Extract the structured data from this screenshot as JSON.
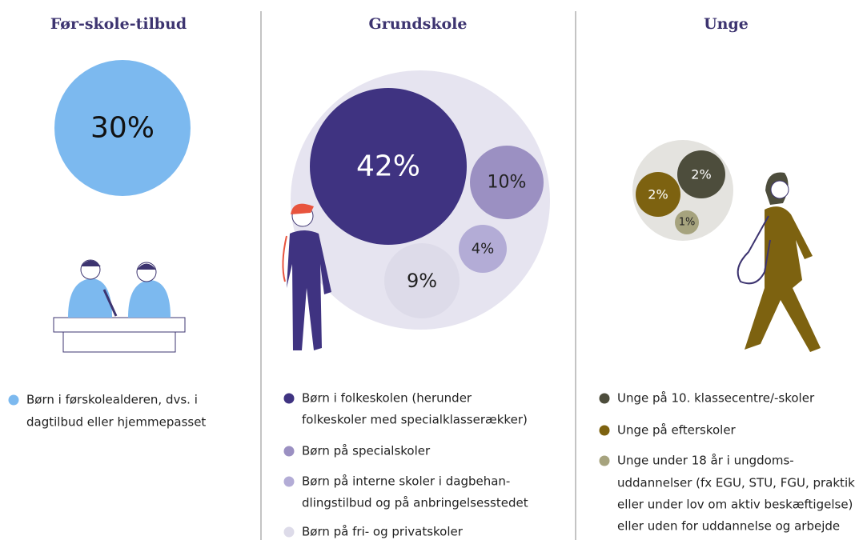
{
  "panels": [
    {
      "title": "Før-skole-tilbud",
      "bubbles": [
        {
          "value": 30,
          "label": "30%",
          "color": "#7cb9ef"
        }
      ],
      "legend": [
        {
          "color": "#7cb9ef",
          "lines": [
            "Børn i førskolealderen, dvs. i",
            "dagtilbud eller hjemmepasset"
          ]
        }
      ]
    },
    {
      "title": "Grundskole",
      "bubbles": [
        {
          "value": 42,
          "label": "42%",
          "color": "#3f3381"
        },
        {
          "value": 10,
          "label": "10%",
          "color": "#9b90c2"
        },
        {
          "value": 4,
          "label": "4%",
          "color": "#b3acd6"
        },
        {
          "value": 9,
          "label": "9%",
          "color": "#dddbe9"
        }
      ],
      "legend": [
        {
          "color": "#3f3381",
          "lines": [
            "Børn i folkeskolen (herunder",
            "folkeskoler med specialklasserækker)"
          ]
        },
        {
          "color": "#9b90c2",
          "lines": [
            "Børn på specialskoler"
          ]
        },
        {
          "color": "#b3acd6",
          "lines": [
            "Børn på interne skoler i dagbehan-",
            "dlingstilbud og på anbringelsesstedet"
          ]
        },
        {
          "color": "#dddbe9",
          "lines": [
            "Børn på fri- og privatskoler"
          ]
        }
      ]
    },
    {
      "title": "Unge",
      "bubbles": [
        {
          "value": 2,
          "label": "2%",
          "color": "#4d4d3c"
        },
        {
          "value": 2,
          "label": "2%",
          "color": "#7d6210"
        },
        {
          "value": 1,
          "label": "1%",
          "color": "#a6a37e"
        }
      ],
      "legend": [
        {
          "color": "#4d4d3c",
          "lines": [
            "Unge på 10. klassecentre/-skoler"
          ]
        },
        {
          "color": "#7d6210",
          "lines": [
            "Unge på efterskoler"
          ]
        },
        {
          "color": "#a6a37e",
          "lines": [
            "Unge under 18 år i ungdoms-",
            "uddannelser (fx EGU, STU, FGU, praktik",
            "eller under lov om aktiv beskæftigelse)",
            "eller uden for uddannelse og arbejde"
          ]
        }
      ]
    }
  ]
}
